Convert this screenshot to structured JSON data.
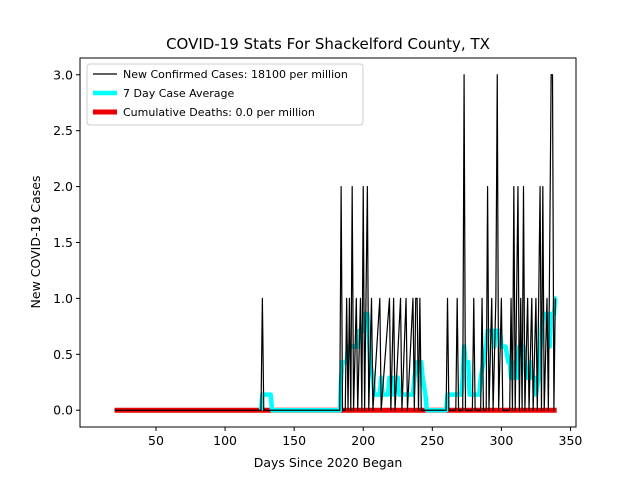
{
  "chart_data": {
    "type": "line",
    "title": "COVID-19 Stats For Shackelford County, TX",
    "xlabel": "Days Since 2020 Began",
    "ylabel": "New COVID-19 Cases",
    "xlim": [
      -5,
      354
    ],
    "ylim": [
      -0.15,
      3.15
    ],
    "xticks": [
      50,
      100,
      150,
      200,
      250,
      300,
      350
    ],
    "yticks": [
      0.0,
      0.5,
      1.0,
      1.5,
      2.0,
      2.5,
      3.0
    ],
    "xtick_labels": [
      "50",
      "100",
      "150",
      "200",
      "250",
      "300",
      "350"
    ],
    "ytick_labels": [
      "0.0",
      "0.5",
      "1.0",
      "1.5",
      "2.0",
      "2.5",
      "3.0"
    ],
    "grid": false,
    "legend_position": "top-left",
    "series": [
      {
        "name": "New Confirmed Cases: 18100 per million",
        "color": "#000000",
        "style": "line-thin",
        "points": [
          [
            20,
            0
          ],
          [
            126,
            0
          ],
          [
            127,
            1
          ],
          [
            128,
            0
          ],
          [
            183,
            0
          ],
          [
            184,
            2
          ],
          [
            185,
            0
          ],
          [
            187,
            0
          ],
          [
            188,
            1
          ],
          [
            189,
            0
          ],
          [
            190,
            1
          ],
          [
            191,
            0
          ],
          [
            192,
            2
          ],
          [
            193,
            0
          ],
          [
            195,
            1
          ],
          [
            196,
            0
          ],
          [
            198,
            1
          ],
          [
            199,
            0
          ],
          [
            200,
            2
          ],
          [
            201,
            0
          ],
          [
            202,
            1
          ],
          [
            203,
            2
          ],
          [
            204,
            0
          ],
          [
            206,
            1
          ],
          [
            207,
            0
          ],
          [
            212,
            1
          ],
          [
            213,
            0
          ],
          [
            219,
            1
          ],
          [
            220,
            0
          ],
          [
            222,
            1
          ],
          [
            223,
            0
          ],
          [
            227,
            1
          ],
          [
            228,
            0
          ],
          [
            231,
            1
          ],
          [
            232,
            0
          ],
          [
            236,
            1
          ],
          [
            237,
            0
          ],
          [
            238,
            1
          ],
          [
            239,
            1
          ],
          [
            240,
            0
          ],
          [
            241,
            1
          ],
          [
            242,
            0
          ],
          [
            260,
            0
          ],
          [
            261,
            1
          ],
          [
            262,
            0
          ],
          [
            267,
            0
          ],
          [
            268,
            1
          ],
          [
            269,
            0
          ],
          [
            272,
            0
          ],
          [
            273,
            3
          ],
          [
            274,
            0
          ],
          [
            279,
            0
          ],
          [
            280,
            1
          ],
          [
            281,
            0
          ],
          [
            285,
            0
          ],
          [
            286,
            1
          ],
          [
            287,
            0
          ],
          [
            289,
            0
          ],
          [
            290,
            2
          ],
          [
            291,
            0
          ],
          [
            293,
            1
          ],
          [
            294,
            0
          ],
          [
            296,
            1
          ],
          [
            297,
            3
          ],
          [
            298,
            0
          ],
          [
            300,
            1
          ],
          [
            301,
            0
          ],
          [
            306,
            0
          ],
          [
            307,
            1
          ],
          [
            308,
            0
          ],
          [
            309,
            2
          ],
          [
            310,
            0
          ],
          [
            312,
            2
          ],
          [
            313,
            0
          ],
          [
            314,
            1
          ],
          [
            315,
            0
          ],
          [
            316,
            2
          ],
          [
            317,
            0
          ],
          [
            319,
            1
          ],
          [
            320,
            0
          ],
          [
            322,
            1
          ],
          [
            323,
            0
          ],
          [
            325,
            1
          ],
          [
            326,
            0
          ],
          [
            328,
            2
          ],
          [
            329,
            0
          ],
          [
            330,
            2
          ],
          [
            331,
            0
          ],
          [
            333,
            1
          ],
          [
            334,
            0
          ],
          [
            336,
            3
          ],
          [
            337,
            3
          ],
          [
            338,
            0
          ],
          [
            339,
            1
          ]
        ]
      },
      {
        "name": "7 Day Case Average",
        "color": "#00ffff",
        "style": "line-thick",
        "points": [
          [
            126,
            0
          ],
          [
            127,
            0.14
          ],
          [
            133,
            0.14
          ],
          [
            134,
            0
          ],
          [
            183,
            0
          ],
          [
            184,
            0.29
          ],
          [
            185,
            0.43
          ],
          [
            188,
            0.43
          ],
          [
            189,
            0.57
          ],
          [
            196,
            0.57
          ],
          [
            197,
            0.71
          ],
          [
            200,
            0.71
          ],
          [
            201,
            0.86
          ],
          [
            203,
            0.86
          ],
          [
            204,
            0.71
          ],
          [
            205,
            0.43
          ],
          [
            207,
            0.29
          ],
          [
            208,
            0.14
          ],
          [
            212,
            0.14
          ],
          [
            213,
            0.29
          ],
          [
            214,
            0.14
          ],
          [
            218,
            0.14
          ],
          [
            219,
            0.29
          ],
          [
            221,
            0.29
          ],
          [
            222,
            0.14
          ],
          [
            223,
            0.29
          ],
          [
            225,
            0.29
          ],
          [
            226,
            0.14
          ],
          [
            236,
            0.14
          ],
          [
            237,
            0.29
          ],
          [
            239,
            0.43
          ],
          [
            242,
            0.43
          ],
          [
            243,
            0.29
          ],
          [
            245,
            0.14
          ],
          [
            246,
            0
          ],
          [
            260,
            0
          ],
          [
            261,
            0.14
          ],
          [
            271,
            0.14
          ],
          [
            272,
            0.29
          ],
          [
            273,
            0.57
          ],
          [
            274,
            0.43
          ],
          [
            276,
            0.43
          ],
          [
            277,
            0.14
          ],
          [
            284,
            0.14
          ],
          [
            285,
            0.29
          ],
          [
            287,
            0.43
          ],
          [
            289,
            0.57
          ],
          [
            290,
            0.71
          ],
          [
            294,
            0.71
          ],
          [
            295,
            0.57
          ],
          [
            296,
            0.71
          ],
          [
            299,
            0.71
          ],
          [
            300,
            0.57
          ],
          [
            303,
            0.57
          ],
          [
            305,
            0.43
          ],
          [
            306,
            0.43
          ],
          [
            307,
            0.29
          ],
          [
            309,
            0.29
          ],
          [
            310,
            0.43
          ],
          [
            311,
            0.29
          ],
          [
            312,
            0.43
          ],
          [
            313,
            0.57
          ],
          [
            316,
            0.57
          ],
          [
            317,
            0.43
          ],
          [
            318,
            0.29
          ],
          [
            320,
            0.29
          ],
          [
            321,
            0.43
          ],
          [
            322,
            0.29
          ],
          [
            324,
            0.29
          ],
          [
            325,
            0.14
          ],
          [
            327,
            0.29
          ],
          [
            329,
            0.71
          ],
          [
            330,
            0.86
          ],
          [
            333,
            0.86
          ],
          [
            334,
            0.71
          ],
          [
            335,
            0.57
          ],
          [
            336,
            0.86
          ],
          [
            338,
            0.86
          ],
          [
            339,
            1.0
          ],
          [
            340,
            1.0
          ]
        ]
      },
      {
        "name": "Cumulative Deaths: 0.0 per million",
        "color": "#ee0000",
        "style": "line-thicker",
        "points": [
          [
            20,
            0
          ],
          [
            340,
            0
          ]
        ]
      }
    ]
  }
}
